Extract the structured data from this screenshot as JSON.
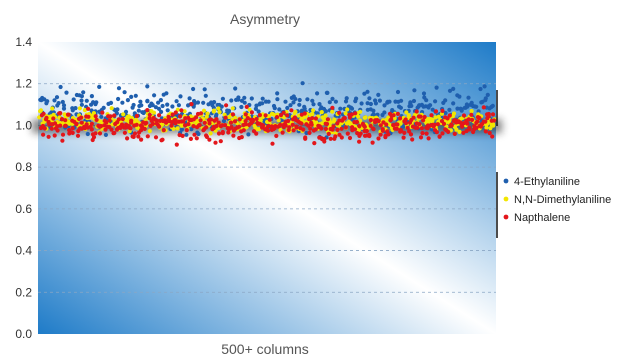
{
  "chart_data": {
    "type": "scatter",
    "title": "Asymmetry",
    "xlabel": "500+ columns",
    "ylabel": "",
    "ylim": [
      0,
      1.4
    ],
    "yticks": [
      "0.0",
      "0.2",
      "0.4",
      "0.6",
      "0.8",
      "1.0",
      "1.2",
      "1.4"
    ],
    "x_count_label": "500+",
    "grid": "horizontal-dashed",
    "legend_position": "right",
    "series": [
      {
        "name": "4-Ethylaniline",
        "color": "#1f5fae",
        "center": 1.07,
        "spread": 0.05
      },
      {
        "name": "N,N-Dimethylaniline",
        "color": "#f2e600",
        "center": 1.02,
        "spread": 0.025
      },
      {
        "name": "Napthalene",
        "color": "#e3161b",
        "center": 1.0,
        "spread": 0.035
      }
    ],
    "background_colors": {
      "plot_edge": "#1e7bc8",
      "plot_light": "#ffffff"
    }
  }
}
